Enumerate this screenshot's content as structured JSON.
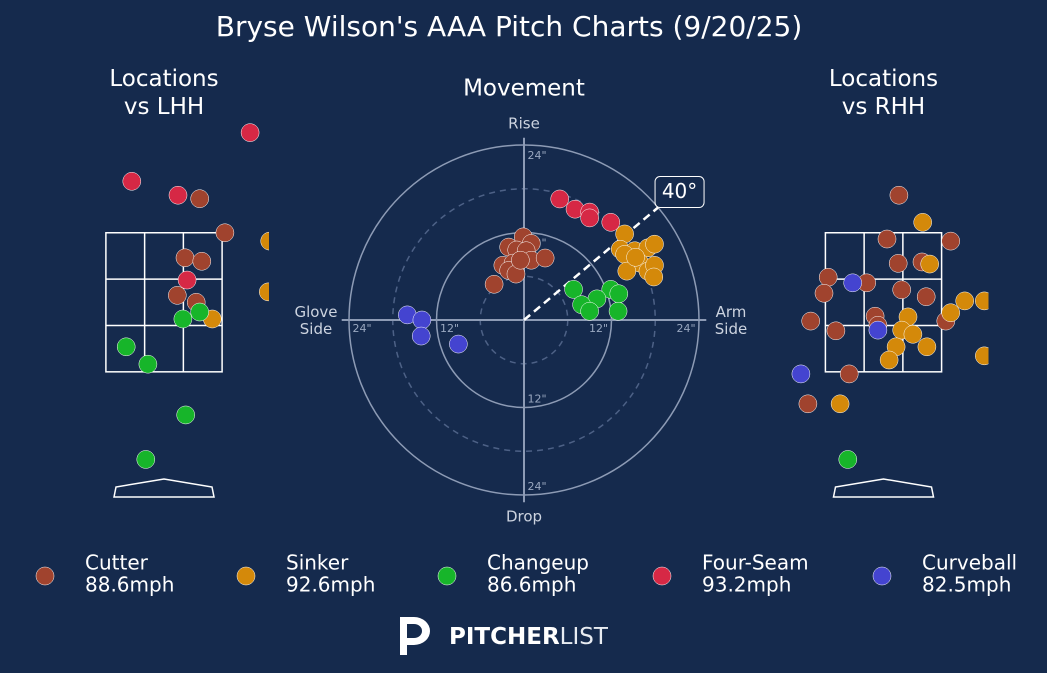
{
  "title": "Bryse Wilson's AAA Pitch Charts (9/20/25)",
  "legend": [
    {
      "name": "Cutter",
      "color": "#a0432e",
      "speed": "88.6mph"
    },
    {
      "name": "Sinker",
      "color": "#d4890a",
      "speed": "92.6mph"
    },
    {
      "name": "Changeup",
      "color": "#17b52a",
      "speed": "86.6mph"
    },
    {
      "name": "Four-Seam",
      "color": "#d62845",
      "speed": "93.2mph"
    },
    {
      "name": "Curveball",
      "color": "#4444d0",
      "speed": "82.5mph"
    }
  ],
  "chart_data": [
    {
      "type": "location",
      "title": [
        "Locations",
        "vs LHH"
      ],
      "xlim": [
        -1.5,
        1.5
      ],
      "ylim": [
        -0.3,
        5.1
      ],
      "zone": {
        "x": [
          -0.83,
          0.83
        ],
        "y": [
          1.5,
          3.5
        ]
      },
      "series": [
        {
          "x": [
            0.51,
            0.87,
            0.3,
            0.54,
            0.19,
            0.46
          ],
          "y": [
            3.99,
            3.5,
            3.14,
            3.09,
            2.6,
            2.5
          ]
        },
        {
          "x": [
            1.51,
            1.49,
            0.69
          ],
          "y": [
            3.38,
            2.65,
            2.26
          ]
        },
        {
          "x": [
            0.51,
            0.27,
            -0.54,
            -0.23,
            0.31,
            -0.26
          ],
          "y": [
            2.36,
            2.26,
            1.86,
            1.61,
            0.88,
            0.24
          ]
        },
        {
          "x": [
            1.23,
            -0.46,
            0.2,
            0.33
          ],
          "y": [
            4.94,
            4.24,
            4.04,
            2.82
          ]
        },
        {
          "x": [],
          "y": []
        }
      ]
    },
    {
      "type": "movement",
      "title": "Movement",
      "rlim": 25,
      "rticks": [
        {
          "value": 12,
          "label": "12\""
        },
        {
          "value": 24,
          "label": "24\""
        }
      ],
      "rminor": [
        6,
        18
      ],
      "axis_labels": {
        "top": "Rise",
        "bottom": "Drop",
        "left": [
          "Glove",
          "Side"
        ],
        "right": [
          "Arm",
          "Side"
        ]
      },
      "arm_angle": {
        "value": 40,
        "label": "40°"
      },
      "series": [
        {
          "x": [
            -0.1,
            -2.1,
            1.0,
            -1.0,
            0.3,
            -2.9,
            -1.5,
            -2.1,
            -1.1,
            1.0,
            2.9,
            -4.1,
            -0.5
          ],
          "y": [
            11.4,
            10.0,
            10.5,
            9.6,
            9.5,
            7.5,
            7.8,
            6.8,
            6.3,
            8.2,
            8.5,
            4.9,
            8.2
          ]
        },
        {
          "x": [
            13.8,
            13.2,
            15.2,
            17.0,
            17.9,
            13.8,
            15.9,
            14.1,
            17.0,
            17.9,
            17.8,
            15.3
          ],
          "y": [
            11.8,
            9.7,
            9.5,
            9.9,
            10.4,
            9.0,
            7.8,
            6.7,
            6.7,
            7.5,
            5.9,
            8.6
          ]
        },
        {
          "x": [
            6.8,
            11.9,
            13.0,
            10.0,
            7.9,
            9.0,
            12.9
          ],
          "y": [
            4.2,
            4.2,
            3.6,
            2.9,
            2.1,
            1.2,
            1.2
          ]
        },
        {
          "x": [
            4.9,
            7.0,
            9.0,
            9.0,
            11.9
          ],
          "y": [
            16.6,
            15.2,
            14.8,
            14.0,
            13.4
          ]
        },
        {
          "x": [
            -16.0,
            -14.0,
            -14.1,
            -9.0
          ],
          "y": [
            0.7,
            0,
            -2.2,
            -3.3
          ]
        }
      ]
    },
    {
      "type": "location",
      "title": [
        "Locations",
        "vs RHH"
      ],
      "xlim": [
        -1.5,
        1.5
      ],
      "ylim": [
        -0.3,
        5.1
      ],
      "zone": {
        "x": [
          -0.83,
          0.83
        ],
        "y": [
          1.5,
          3.5
        ]
      },
      "series": [
        {
          "x": [
            0.22,
            0.05,
            0.96,
            0.21,
            0.55,
            -0.79,
            -0.85,
            0.26,
            0.61,
            -1.04,
            -0.68,
            -0.12,
            -0.08,
            0.89,
            -0.49,
            -1.08,
            -0.24
          ],
          "y": [
            4.04,
            3.41,
            3.38,
            3.06,
            3.08,
            2.86,
            2.63,
            2.68,
            2.58,
            2.23,
            2.09,
            2.3,
            2.17,
            2.23,
            1.47,
            1.04,
            2.78
          ]
        },
        {
          "x": [
            0.56,
            0.66,
            1.44,
            1.16,
            0.96,
            0.35,
            0.26,
            0.42,
            0.18,
            0.62,
            0.08,
            -0.62,
            1.44
          ],
          "y": [
            3.65,
            3.05,
            2.52,
            2.52,
            2.35,
            2.29,
            2.1,
            2.04,
            1.86,
            1.86,
            1.67,
            1.04,
            1.73
          ]
        },
        {
          "x": [
            -0.51
          ],
          "y": [
            0.24
          ]
        },
        {
          "x": [],
          "y": []
        },
        {
          "x": [
            -0.44,
            -0.08,
            -1.18
          ],
          "y": [
            2.78,
            2.1,
            1.47
          ]
        }
      ]
    }
  ],
  "brand": [
    "PITCHER",
    "LIST"
  ]
}
